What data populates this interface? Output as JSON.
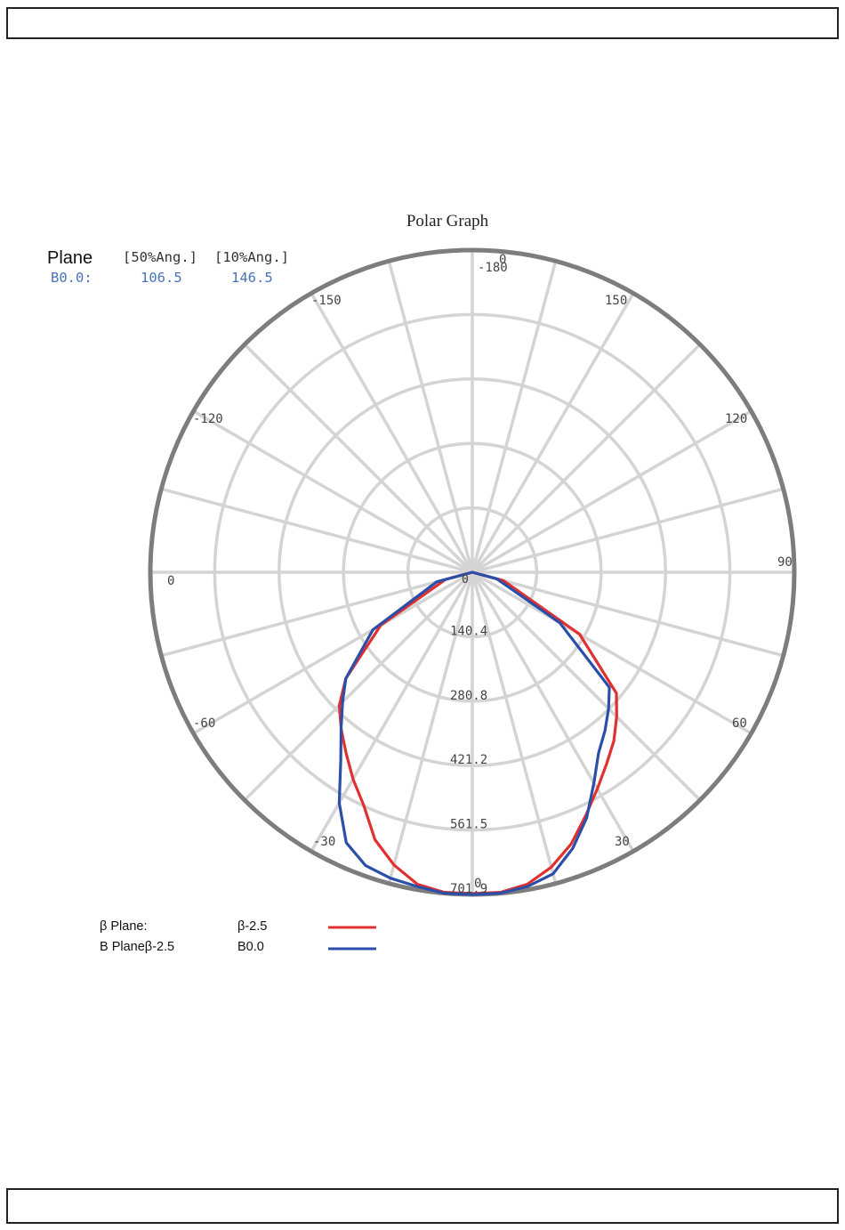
{
  "summary_table": {
    "headers": [
      "Plane",
      "[50%Ang.]",
      "[10%Ang.]"
    ],
    "rows": [
      {
        "plane": "B0.0:",
        "ang50": "106.5",
        "ang10": "146.5"
      }
    ]
  },
  "chart_data": {
    "type": "polar",
    "title": "Polar Graph",
    "radial_ticks": [
      "0",
      "140.4",
      "280.8",
      "421.2",
      "561.5",
      "701.9"
    ],
    "r_max": 701.9,
    "angle_labels": [
      {
        "text": "0",
        "angle": 180
      },
      {
        "text": "-180",
        "angle": 180
      },
      {
        "text": "-150",
        "angle": -150
      },
      {
        "text": "150",
        "angle": 150
      },
      {
        "text": "-120",
        "angle": -120
      },
      {
        "text": "120",
        "angle": 120
      },
      {
        "text": "0",
        "angle": -90
      },
      {
        "text": "90",
        "angle": 90
      },
      {
        "text": "-60",
        "angle": -60
      },
      {
        "text": "60",
        "angle": 60
      },
      {
        "text": "-30",
        "angle": -30
      },
      {
        "text": "30",
        "angle": 30
      },
      {
        "text": "0",
        "angle": 0
      }
    ],
    "series": [
      {
        "name": "β-2.5",
        "color": "#e03030",
        "theta": [
          -90,
          -75,
          -60,
          -50,
          -45,
          -40,
          -35,
          -30,
          -25,
          -20,
          -15,
          -10,
          -5,
          0,
          5,
          10,
          15,
          20,
          25,
          30,
          35,
          40,
          45,
          50,
          60,
          75,
          90
        ],
        "values": [
          0,
          60,
          230,
          360,
          410,
          445,
          480,
          520,
          560,
          620,
          660,
          690,
          700,
          700,
          700,
          690,
          665,
          630,
          585,
          545,
          510,
          480,
          445,
          410,
          270,
          70,
          0
        ]
      },
      {
        "name": "B0.0",
        "color": "#2b4ea8",
        "theta": [
          -90,
          -75,
          -60,
          -50,
          -45,
          -40,
          -35,
          -30,
          -25,
          -20,
          -15,
          -10,
          -5,
          0,
          5,
          10,
          15,
          20,
          25,
          30,
          35,
          40,
          45,
          50,
          60,
          75,
          90
        ],
        "values": [
          0,
          80,
          250,
          360,
          400,
          445,
          500,
          580,
          650,
          680,
          690,
          695,
          701.9,
          701.9,
          701.9,
          695,
          680,
          640,
          590,
          530,
          480,
          450,
          420,
          390,
          220,
          55,
          0
        ]
      }
    ]
  },
  "legend": [
    {
      "label": "β Plane:",
      "value": "β-2.5",
      "color": "#e03030"
    },
    {
      "label": "B Planeβ-2.5",
      "value": "B0.0",
      "color": "#2b4ea8"
    }
  ]
}
